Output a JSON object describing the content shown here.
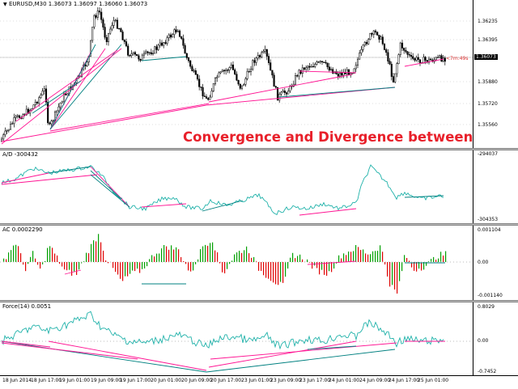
{
  "chart_data": [
    {
      "type": "line",
      "title": "EURUSD,M30 1.36073 1.36097 1.36060 1.36073",
      "series": [
        {
          "name": "EURUSD,M30"
        }
      ],
      "y_ticks": [
        "1.36395",
        "1.36235",
        "1.36073",
        "1.35880",
        "1.35720",
        "1.35560"
      ],
      "current_price": "1.36073",
      "timer": "<7m:49s",
      "x_ticks": [
        "18 Jun 2014",
        "18 Jun 17:00",
        "19 Jun 01:00",
        "19 Jun 09:00",
        "19 Jun 17:00",
        "20 Jun 01:00",
        "20 Jun 09:00",
        "20 Jun 17:00",
        "23 Jun 01:00",
        "23 Jun 09:00",
        "23 Jun 17:00",
        "24 Jun 01:00",
        "24 Jun 09:00",
        "24 Jun 17:00",
        "25 Jun 01:00"
      ]
    },
    {
      "type": "line",
      "title": "A/D -300432",
      "y_ticks": [
        "-294037",
        "-304353"
      ]
    },
    {
      "type": "bar",
      "title": "AC 0.0002290",
      "y_ticks": [
        "0.001104",
        "0.00",
        "-0.001140"
      ]
    },
    {
      "type": "line",
      "title": "Force(14) 0.0051",
      "y_ticks": [
        "0.8029",
        "0.00",
        "-0.7452"
      ]
    }
  ],
  "annotation": "Convergence and Divergence between symbol and three indicators at the same time",
  "colors": {
    "up_bar": "#00a000",
    "down_bar": "#e00000",
    "line": "#20b2aa",
    "bull": "#ff1493",
    "bear": "#008080"
  }
}
